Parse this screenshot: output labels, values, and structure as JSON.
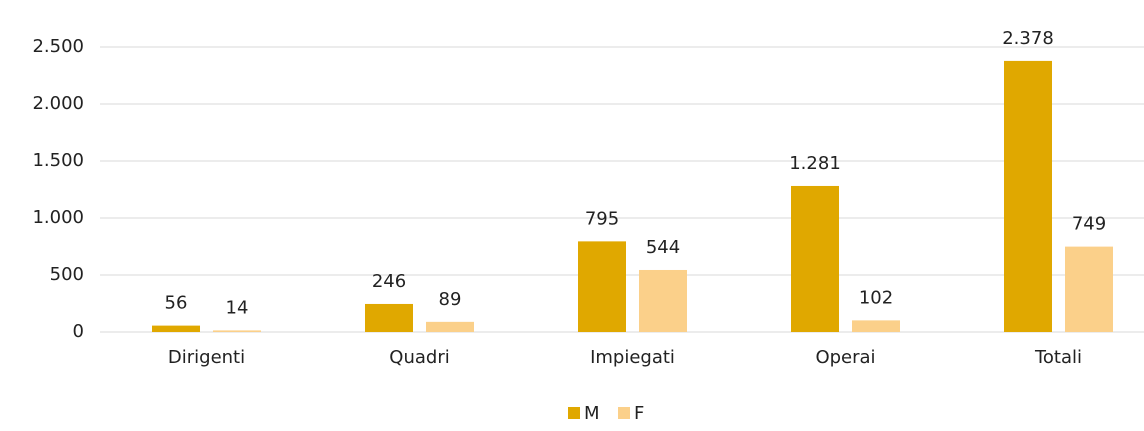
{
  "chart_data": {
    "type": "bar",
    "categories": [
      "Dirigenti",
      "Quadri",
      "Impiegati",
      "Operai",
      "Totali"
    ],
    "series": [
      {
        "name": "M",
        "color": "#e0a800",
        "values": [
          56,
          246,
          795,
          1281,
          2378
        ],
        "value_labels": [
          "56",
          "246",
          "795",
          "1.281",
          "2.378"
        ]
      },
      {
        "name": "F",
        "color": "#fbd08a",
        "values": [
          14,
          89,
          544,
          102,
          749
        ]
      }
    ],
    "ylim": [
      0,
      2500
    ],
    "yticks": [
      0,
      500,
      {
        "value": 1000,
        "label": "1.000"
      },
      {
        "value": 1500,
        "label": "1.500"
      },
      {
        "value": 2000,
        "label": "2.000"
      },
      {
        "value": 2500,
        "label": "2.500"
      }
    ],
    "grid": true,
    "legend": "bottom"
  }
}
